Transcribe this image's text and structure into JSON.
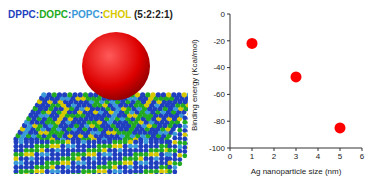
{
  "chart_data": {
    "type": "scatter",
    "x_label": "Ag nanoparticle size (nm)",
    "y_label": "Binding energy (Kcal/mol)",
    "x": [
      1,
      3,
      5
    ],
    "values": [
      -22,
      -47,
      -85
    ],
    "color": "#ff0000",
    "marker": "circle",
    "xlim": [
      0,
      6
    ],
    "xticks": [
      0,
      1,
      2,
      3,
      4,
      5,
      6
    ],
    "ylim": [
      -100,
      0
    ],
    "yticks": [
      -100,
      -80,
      -60,
      -40,
      -20,
      0
    ],
    "grid": false
  },
  "figure": {
    "title": [
      {
        "text": "DPPC",
        "color": "#1f3fbf"
      },
      {
        "text": ":",
        "color": "#1f3fbf"
      },
      {
        "text": "DOPC",
        "color": "#22aa22"
      },
      {
        "text": ":",
        "color": "#1f3fbf"
      },
      {
        "text": "POPC",
        "color": "#3a9ad9"
      },
      {
        "text": ":",
        "color": "#1f3fbf"
      },
      {
        "text": "CHOL",
        "color": "#d8c800"
      },
      {
        "text": " (5:2:2:1)",
        "color": "#222222"
      }
    ]
  }
}
